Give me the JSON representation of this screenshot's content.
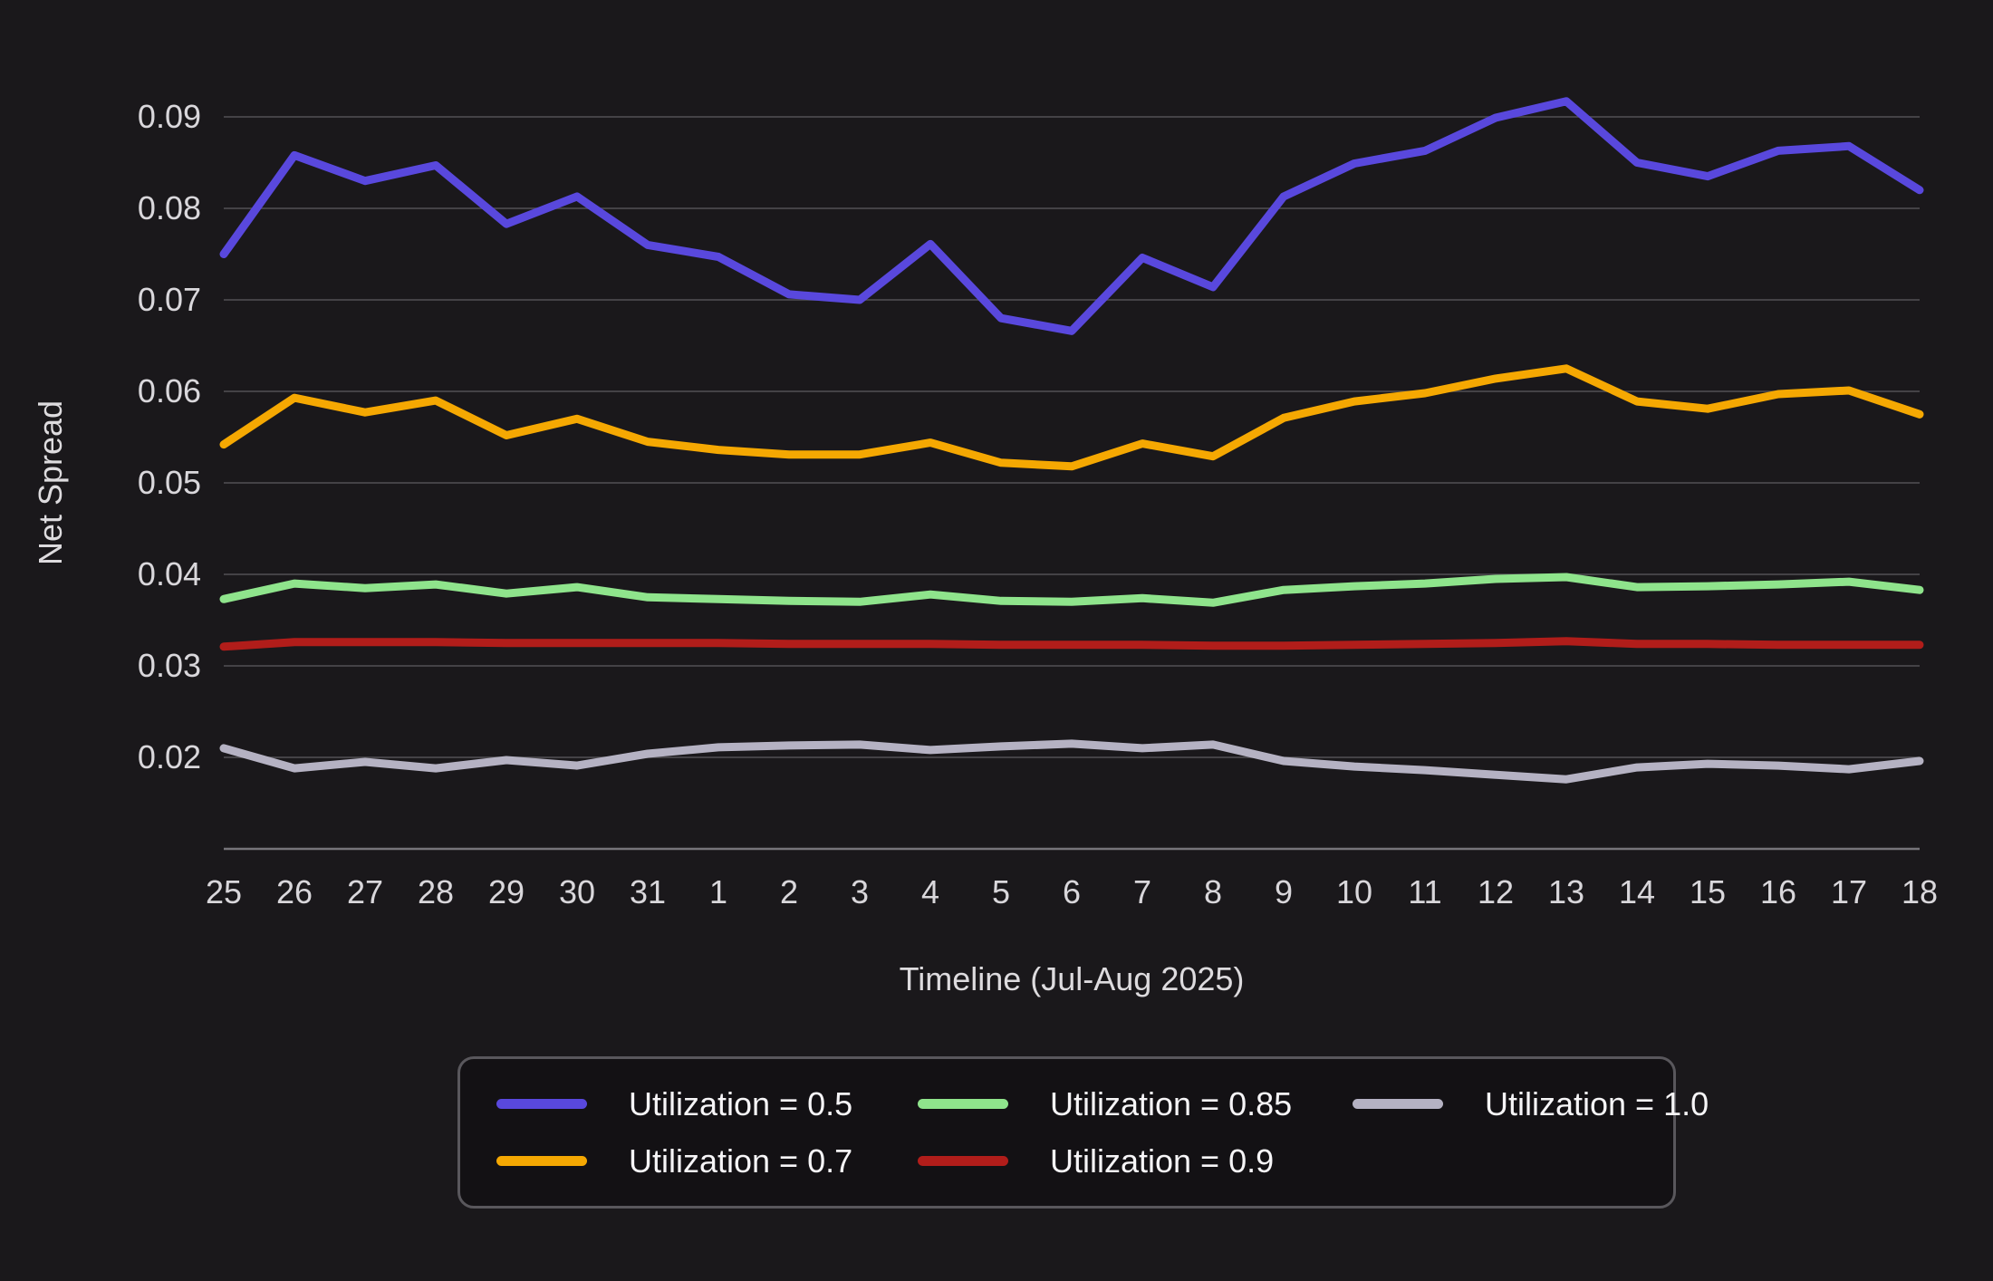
{
  "chart_data": {
    "type": "line",
    "title": "",
    "xlabel": "Timeline (Jul-Aug 2025)",
    "ylabel": "Net Spread",
    "x_labels": [
      "25",
      "26",
      "27",
      "28",
      "29",
      "30",
      "31",
      "1",
      "2",
      "3",
      "4",
      "5",
      "6",
      "7",
      "8",
      "9",
      "10",
      "11",
      "12",
      "13",
      "14",
      "15",
      "16",
      "17",
      "18"
    ],
    "y_ticks": [
      0.02,
      0.03,
      0.04,
      0.05,
      0.06,
      0.07,
      0.08,
      0.09
    ],
    "ylim": [
      0.01,
      0.0975
    ],
    "grid": true,
    "legend_position": "bottom",
    "series": [
      {
        "name": "Utilization = 0.5",
        "color": "#5948dd",
        "values": [
          0.075,
          0.0858,
          0.083,
          0.0847,
          0.0783,
          0.0813,
          0.076,
          0.0747,
          0.0706,
          0.07,
          0.0761,
          0.068,
          0.0666,
          0.0746,
          0.0714,
          0.0813,
          0.0849,
          0.0863,
          0.0899,
          0.0917,
          0.085,
          0.0835,
          0.0863,
          0.0868,
          0.082
        ]
      },
      {
        "name": "Utilization = 0.7",
        "color": "#f5a802",
        "values": [
          0.0542,
          0.0593,
          0.0577,
          0.059,
          0.0552,
          0.057,
          0.0545,
          0.0536,
          0.0531,
          0.0531,
          0.0544,
          0.0522,
          0.0518,
          0.0543,
          0.0529,
          0.0571,
          0.0589,
          0.0598,
          0.0614,
          0.0625,
          0.0589,
          0.0581,
          0.0597,
          0.0601,
          0.0575
        ]
      },
      {
        "name": "Utilization = 0.85",
        "color": "#8fe48c",
        "values": [
          0.0373,
          0.039,
          0.0385,
          0.0389,
          0.0379,
          0.0386,
          0.0375,
          0.0373,
          0.0371,
          0.037,
          0.0378,
          0.0371,
          0.037,
          0.0374,
          0.0369,
          0.0383,
          0.0387,
          0.039,
          0.0395,
          0.0397,
          0.0386,
          0.0387,
          0.0389,
          0.0392,
          0.0383
        ]
      },
      {
        "name": "Utilization = 0.9",
        "color": "#b11d1a",
        "values": [
          0.0321,
          0.0326,
          0.0326,
          0.0326,
          0.0325,
          0.0325,
          0.0325,
          0.0325,
          0.0324,
          0.0324,
          0.0324,
          0.0323,
          0.0323,
          0.0323,
          0.0322,
          0.0322,
          0.0323,
          0.0324,
          0.0325,
          0.0327,
          0.0324,
          0.0324,
          0.0323,
          0.0323,
          0.0323
        ]
      },
      {
        "name": "Utilization = 1.0",
        "color": "#b5b2c3",
        "values": [
          0.021,
          0.0188,
          0.0195,
          0.0188,
          0.0197,
          0.0191,
          0.0204,
          0.0211,
          0.0213,
          0.0214,
          0.0208,
          0.0212,
          0.0215,
          0.021,
          0.0214,
          0.0196,
          0.019,
          0.0186,
          0.0181,
          0.0176,
          0.0189,
          0.0193,
          0.0191,
          0.0187,
          0.0196
        ]
      }
    ],
    "colors": {
      "background": "#1a181b",
      "gridline": "#4a484d",
      "axis_line": "#76747a",
      "tick_text": "#d9d7db",
      "legend_border": "#59575c",
      "legend_background": "#131114",
      "legend_text": "#f6f5f7"
    }
  }
}
